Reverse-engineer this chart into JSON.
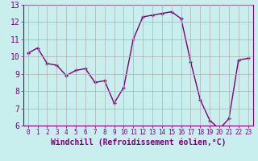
{
  "x": [
    0,
    1,
    2,
    3,
    4,
    5,
    6,
    7,
    8,
    9,
    10,
    11,
    12,
    13,
    14,
    15,
    16,
    17,
    18,
    19,
    20,
    21,
    22,
    23
  ],
  "y": [
    10.2,
    10.5,
    9.6,
    9.5,
    8.9,
    9.2,
    9.3,
    8.5,
    8.6,
    7.3,
    8.2,
    11.0,
    12.3,
    12.4,
    12.5,
    12.6,
    12.2,
    9.7,
    7.5,
    6.3,
    5.8,
    6.4,
    9.8,
    9.9
  ],
  "line_color": "#7b0078",
  "marker": "+",
  "marker_color": "#7b0078",
  "bg_color": "#c8eeee",
  "grid_color": "#b0b0b0",
  "axis_color": "#7b0078",
  "xlabel": "Windchill (Refroidissement éolien,°C)",
  "xlim": [
    -0.5,
    23.5
  ],
  "ylim": [
    6,
    13
  ],
  "yticks": [
    6,
    7,
    8,
    9,
    10,
    11,
    12,
    13
  ],
  "xticks": [
    0,
    1,
    2,
    3,
    4,
    5,
    6,
    7,
    8,
    9,
    10,
    11,
    12,
    13,
    14,
    15,
    16,
    17,
    18,
    19,
    20,
    21,
    22,
    23
  ],
  "xlabel_fontsize": 7.0,
  "tick_fontsize": 7.0,
  "tick_color": "#7b0078",
  "linewidth": 1.0,
  "markersize": 3.5
}
